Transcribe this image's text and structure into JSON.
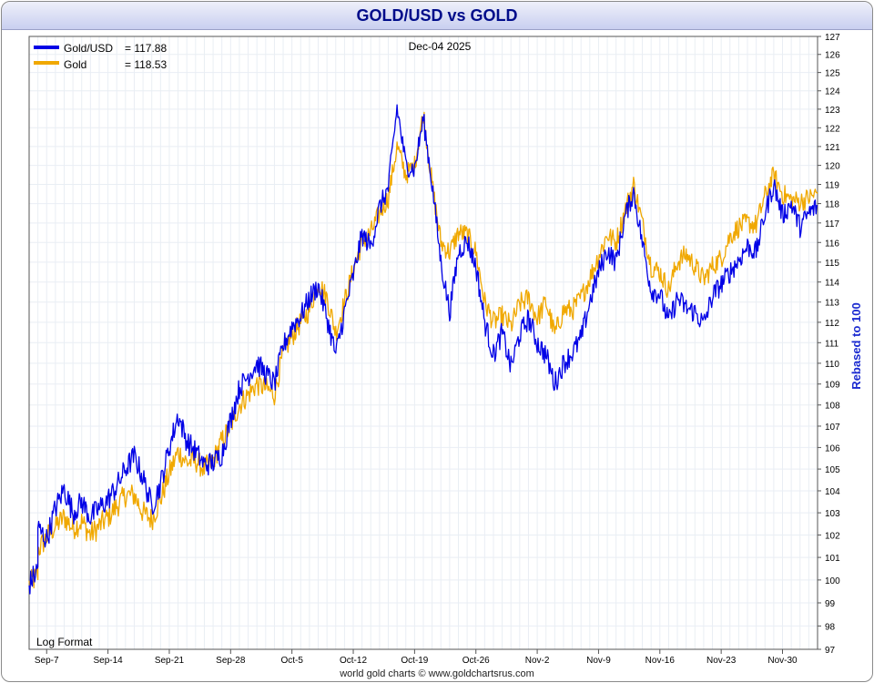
{
  "chart_data": {
    "type": "line",
    "title": "GOLD/USD vs GOLD",
    "date_label": "Dec-04  2025",
    "ylabel": "Rebased to 100",
    "scale_note": "Log Format",
    "footer": "world gold charts © www.goldchartsrus.com",
    "ylim": [
      97,
      127
    ],
    "yticks": [
      97,
      98,
      99,
      100,
      101,
      102,
      103,
      104,
      105,
      106,
      107,
      108,
      109,
      110,
      111,
      112,
      113,
      114,
      115,
      116,
      117,
      118,
      119,
      120,
      121,
      122,
      123,
      124,
      125,
      126,
      127
    ],
    "xticks": [
      "Sep-7",
      "Sep-14",
      "Sep-21",
      "Sep-28",
      "Oct-5",
      "Oct-12",
      "Oct-19",
      "Oct-26",
      "Nov-2",
      "Nov-9",
      "Nov-16",
      "Nov-23",
      "Nov-30"
    ],
    "x_start": "2025-09-05",
    "x_end": "2025-12-04",
    "grid": true,
    "legend_position": "top-left",
    "series": [
      {
        "name": "Gold/USD",
        "legend_label": "Gold/USD",
        "last_value": "= 117.88",
        "color": "#0000e6",
        "points": [
          [
            "2025-09-05",
            99.8
          ],
          [
            "2025-09-06",
            100.5
          ],
          [
            "2025-09-06",
            102.3
          ],
          [
            "2025-09-07",
            101.8
          ],
          [
            "2025-09-08",
            103.2
          ],
          [
            "2025-09-09",
            104.1
          ],
          [
            "2025-09-10",
            103.0
          ],
          [
            "2025-09-11",
            103.5
          ],
          [
            "2025-09-12",
            102.8
          ],
          [
            "2025-09-13",
            103.2
          ],
          [
            "2025-09-14",
            103.6
          ],
          [
            "2025-09-15",
            104.2
          ],
          [
            "2025-09-16",
            105.0
          ],
          [
            "2025-09-17",
            105.6
          ],
          [
            "2025-09-18",
            104.6
          ],
          [
            "2025-09-19",
            103.3
          ],
          [
            "2025-09-20",
            104.3
          ],
          [
            "2025-09-21",
            106.0
          ],
          [
            "2025-09-22",
            107.5
          ],
          [
            "2025-09-23",
            106.3
          ],
          [
            "2025-09-24",
            105.8
          ],
          [
            "2025-09-25",
            105.2
          ],
          [
            "2025-09-26",
            105.3
          ],
          [
            "2025-09-27",
            105.7
          ],
          [
            "2025-09-28",
            107.3
          ],
          [
            "2025-09-29",
            108.8
          ],
          [
            "2025-09-30",
            109.4
          ],
          [
            "2025-10-01",
            110.0
          ],
          [
            "2025-10-02",
            109.5
          ],
          [
            "2025-10-03",
            109.0
          ],
          [
            "2025-10-04",
            110.8
          ],
          [
            "2025-10-05",
            111.8
          ],
          [
            "2025-10-06",
            112.3
          ],
          [
            "2025-10-07",
            113.2
          ],
          [
            "2025-10-08",
            113.8
          ],
          [
            "2025-10-09",
            112.2
          ],
          [
            "2025-10-10",
            110.4
          ],
          [
            "2025-10-11",
            112.5
          ],
          [
            "2025-10-12",
            114.3
          ],
          [
            "2025-10-13",
            116.4
          ],
          [
            "2025-10-14",
            115.8
          ],
          [
            "2025-10-15",
            117.8
          ],
          [
            "2025-10-16",
            118.8
          ],
          [
            "2025-10-17",
            123.1
          ],
          [
            "2025-10-18",
            120.0
          ],
          [
            "2025-10-19",
            119.8
          ],
          [
            "2025-10-20",
            122.5
          ],
          [
            "2025-10-21",
            119.0
          ],
          [
            "2025-10-22",
            115.0
          ],
          [
            "2025-10-23",
            112.5
          ],
          [
            "2025-10-24",
            115.5
          ],
          [
            "2025-10-25",
            116.1
          ],
          [
            "2025-10-26",
            114.8
          ],
          [
            "2025-10-27",
            112.0
          ],
          [
            "2025-10-28",
            110.4
          ],
          [
            "2025-10-29",
            111.5
          ],
          [
            "2025-10-30",
            109.8
          ],
          [
            "2025-10-31",
            111.4
          ],
          [
            "2025-11-01",
            112.2
          ],
          [
            "2025-11-02",
            111.0
          ],
          [
            "2025-11-03",
            110.4
          ],
          [
            "2025-11-04",
            109.0
          ],
          [
            "2025-11-05",
            110.0
          ],
          [
            "2025-11-06",
            110.5
          ],
          [
            "2025-11-07",
            111.2
          ],
          [
            "2025-11-08",
            113.0
          ],
          [
            "2025-11-09",
            114.5
          ],
          [
            "2025-11-10",
            115.6
          ],
          [
            "2025-11-11",
            115.0
          ],
          [
            "2025-11-12",
            117.3
          ],
          [
            "2025-11-13",
            118.6
          ],
          [
            "2025-11-14",
            116.0
          ],
          [
            "2025-11-15",
            113.6
          ],
          [
            "2025-11-16",
            113.4
          ],
          [
            "2025-11-17",
            112.0
          ],
          [
            "2025-11-18",
            113.2
          ],
          [
            "2025-11-19",
            112.7
          ],
          [
            "2025-11-20",
            112.5
          ],
          [
            "2025-11-21",
            111.9
          ],
          [
            "2025-11-22",
            113.3
          ],
          [
            "2025-11-23",
            113.9
          ],
          [
            "2025-11-24",
            114.5
          ],
          [
            "2025-11-25",
            115.1
          ],
          [
            "2025-11-26",
            115.8
          ],
          [
            "2025-11-27",
            115.5
          ],
          [
            "2025-11-28",
            117.5
          ],
          [
            "2025-11-29",
            119.0
          ],
          [
            "2025-11-30",
            117.4
          ],
          [
            "2025-12-01",
            118.0
          ],
          [
            "2025-12-02",
            116.8
          ],
          [
            "2025-12-03",
            117.5
          ],
          [
            "2025-12-04",
            117.88
          ]
        ]
      },
      {
        "name": "Gold",
        "legend_label": "Gold",
        "last_value": "= 118.53",
        "color": "#f0a800",
        "points": [
          [
            "2025-09-05",
            99.8
          ],
          [
            "2025-09-06",
            100.2
          ],
          [
            "2025-09-06",
            101.3
          ],
          [
            "2025-09-07",
            101.9
          ],
          [
            "2025-09-08",
            102.4
          ],
          [
            "2025-09-09",
            102.8
          ],
          [
            "2025-09-10",
            102.3
          ],
          [
            "2025-09-11",
            102.6
          ],
          [
            "2025-09-12",
            102.0
          ],
          [
            "2025-09-13",
            102.4
          ],
          [
            "2025-09-14",
            102.8
          ],
          [
            "2025-09-15",
            103.3
          ],
          [
            "2025-09-16",
            103.8
          ],
          [
            "2025-09-17",
            103.8
          ],
          [
            "2025-09-18",
            103.0
          ],
          [
            "2025-09-19",
            102.7
          ],
          [
            "2025-09-20",
            103.6
          ],
          [
            "2025-09-21",
            104.8
          ],
          [
            "2025-09-22",
            105.8
          ],
          [
            "2025-09-23",
            105.3
          ],
          [
            "2025-09-24",
            105.4
          ],
          [
            "2025-09-25",
            105.0
          ],
          [
            "2025-09-26",
            105.4
          ],
          [
            "2025-09-27",
            106.3
          ],
          [
            "2025-09-28",
            107.0
          ],
          [
            "2025-09-29",
            108.0
          ],
          [
            "2025-09-30",
            108.5
          ],
          [
            "2025-10-01",
            109.0
          ],
          [
            "2025-10-02",
            108.8
          ],
          [
            "2025-10-03",
            108.5
          ],
          [
            "2025-10-04",
            110.5
          ],
          [
            "2025-10-05",
            111.3
          ],
          [
            "2025-10-06",
            112.0
          ],
          [
            "2025-10-07",
            112.6
          ],
          [
            "2025-10-08",
            114.0
          ],
          [
            "2025-10-09",
            113.2
          ],
          [
            "2025-10-10",
            111.5
          ],
          [
            "2025-10-11",
            113.0
          ],
          [
            "2025-10-12",
            114.6
          ],
          [
            "2025-10-13",
            116.0
          ],
          [
            "2025-10-14",
            116.5
          ],
          [
            "2025-10-15",
            117.5
          ],
          [
            "2025-10-16",
            118.3
          ],
          [
            "2025-10-17",
            121.0
          ],
          [
            "2025-10-18",
            119.5
          ],
          [
            "2025-10-19",
            120.0
          ],
          [
            "2025-10-20",
            122.8
          ],
          [
            "2025-10-21",
            119.0
          ],
          [
            "2025-10-22",
            116.0
          ],
          [
            "2025-10-23",
            115.5
          ],
          [
            "2025-10-24",
            116.5
          ],
          [
            "2025-10-25",
            116.4
          ],
          [
            "2025-10-26",
            115.5
          ],
          [
            "2025-10-27",
            113.0
          ],
          [
            "2025-10-28",
            112.0
          ],
          [
            "2025-10-29",
            112.3
          ],
          [
            "2025-10-30",
            111.8
          ],
          [
            "2025-10-31",
            112.9
          ],
          [
            "2025-11-01",
            113.2
          ],
          [
            "2025-11-02",
            112.2
          ],
          [
            "2025-11-03",
            113.0
          ],
          [
            "2025-11-04",
            111.4
          ],
          [
            "2025-11-05",
            112.6
          ],
          [
            "2025-11-06",
            112.6
          ],
          [
            "2025-11-07",
            113.2
          ],
          [
            "2025-11-08",
            114.2
          ],
          [
            "2025-11-09",
            115.3
          ],
          [
            "2025-11-10",
            116.4
          ],
          [
            "2025-11-11",
            116.0
          ],
          [
            "2025-11-12",
            117.6
          ],
          [
            "2025-11-13",
            119.0
          ],
          [
            "2025-11-14",
            117.0
          ],
          [
            "2025-11-15",
            114.8
          ],
          [
            "2025-11-16",
            114.5
          ],
          [
            "2025-11-17",
            113.6
          ],
          [
            "2025-11-18",
            115.0
          ],
          [
            "2025-11-19",
            115.4
          ],
          [
            "2025-11-20",
            114.8
          ],
          [
            "2025-11-21",
            114.1
          ],
          [
            "2025-11-22",
            114.8
          ],
          [
            "2025-11-23",
            115.2
          ],
          [
            "2025-11-24",
            116.3
          ],
          [
            "2025-11-25",
            116.8
          ],
          [
            "2025-11-26",
            117.0
          ],
          [
            "2025-11-27",
            116.9
          ],
          [
            "2025-11-28",
            118.4
          ],
          [
            "2025-11-29",
            119.5
          ],
          [
            "2025-11-30",
            118.5
          ],
          [
            "2025-12-01",
            118.2
          ],
          [
            "2025-12-02",
            118.1
          ],
          [
            "2025-12-03",
            118.3
          ],
          [
            "2025-12-04",
            118.53
          ]
        ]
      }
    ]
  }
}
